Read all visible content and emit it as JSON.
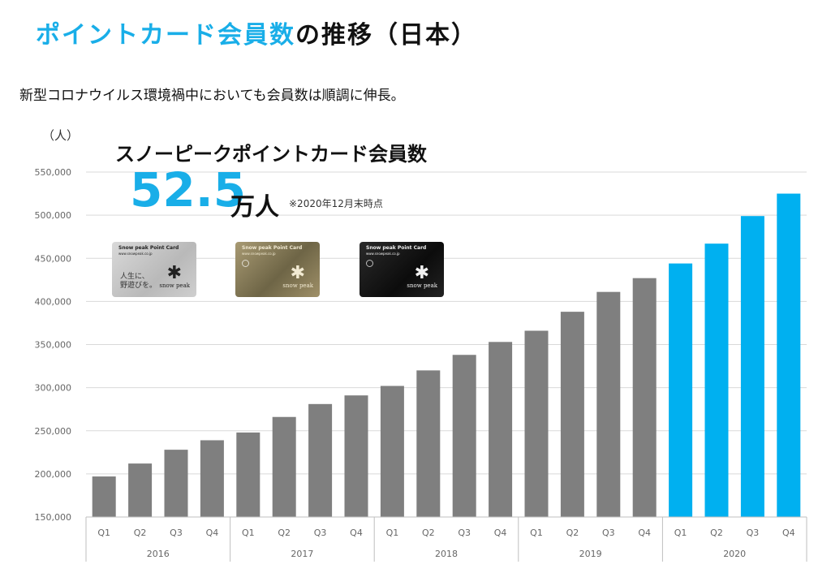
{
  "page": {
    "title_accent": "ポイントカード会員数",
    "title_rest": "の推移（日本）",
    "subtitle": "新型コロナウイルス環境禍中においても会員数は順調に伸長。",
    "y_unit": "（人）"
  },
  "callout": {
    "title": "スノーピークポイントカード会員数",
    "number_int": "52",
    "number_dot": ".",
    "number_dec": "5",
    "unit": "万人",
    "as_of": "※2020年12月末時点"
  },
  "cards": [
    {
      "brand": "Snow peak Point Card",
      "url": "www.snowpeak.co.jp",
      "tagline": "人生に、\n野遊びを。",
      "logo": "snow peak"
    },
    {
      "brand": "Snow peak Point Card",
      "url": "www.snowpeak.co.jp",
      "logo": "snow peak"
    },
    {
      "brand": "Snow peak Point Card",
      "url": "www.snowpeak.co.jp",
      "logo": "snow peak"
    }
  ],
  "colors": {
    "accent": "#19aee8",
    "bar_past": "#7f7f7f",
    "bar_highlight": "#00b0f0",
    "grid": "#d9d9d9"
  },
  "chart_data": {
    "type": "bar",
    "categories": [
      "Q1",
      "Q2",
      "Q3",
      "Q4",
      "Q1",
      "Q2",
      "Q3",
      "Q4",
      "Q1",
      "Q2",
      "Q3",
      "Q4",
      "Q1",
      "Q2",
      "Q3",
      "Q4",
      "Q1",
      "Q2",
      "Q3",
      "Q4"
    ],
    "groups": [
      "2016",
      "2017",
      "2018",
      "2019",
      "2020"
    ],
    "values": [
      197000,
      212000,
      228000,
      239000,
      248000,
      266000,
      281000,
      291000,
      302000,
      320000,
      338000,
      353000,
      366000,
      388000,
      411000,
      427000,
      444000,
      467000,
      499000,
      525000
    ],
    "highlight_group": "2020",
    "ylim": [
      150000,
      550000
    ],
    "yticks": [
      150000,
      200000,
      250000,
      300000,
      350000,
      400000,
      450000,
      500000,
      550000
    ],
    "ytick_labels": [
      "150,000",
      "200,000",
      "250,000",
      "300,000",
      "350,000",
      "400,000",
      "450,000",
      "500,000",
      "550,000"
    ],
    "grid": true,
    "legend": "none"
  }
}
